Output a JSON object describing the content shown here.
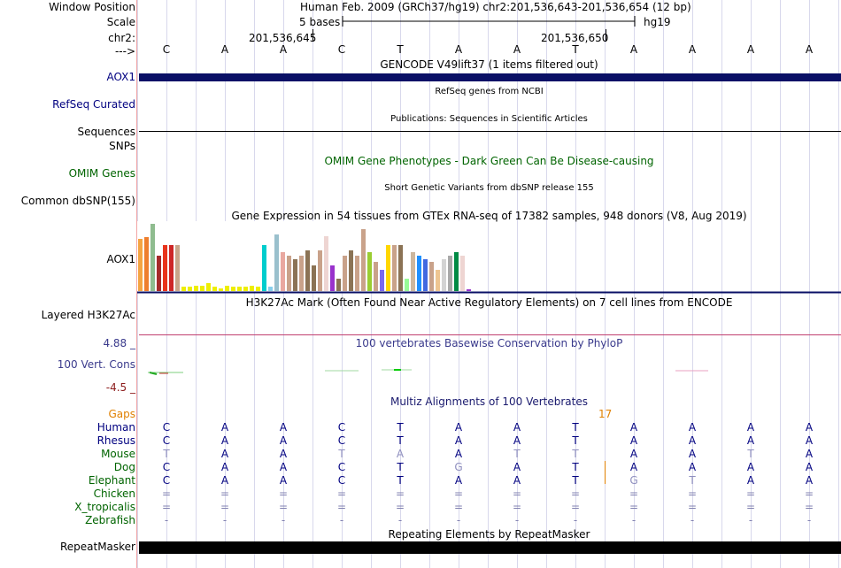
{
  "header": {
    "window_position_label": "Window Position",
    "scale_label": "Scale",
    "chr_label": "chr2:",
    "arrow_label": "--->",
    "assembly_text": "Human Feb. 2009 (GRCh37/hg19)   chr2:201,536,643-201,536,654 (12 bp)",
    "scale_text": "5 bases",
    "db_text": "hg19",
    "coord_left": "201,536,645",
    "coord_right": "201,536,650"
  },
  "sequence": [
    "C",
    "A",
    "A",
    "C",
    "T",
    "A",
    "A",
    "T",
    "A",
    "A",
    "A",
    "A"
  ],
  "tracks": {
    "gencode": {
      "title": "GENCODE V49lift37 (1 items filtered out)",
      "label": "AOX1"
    },
    "refseq": {
      "title": "RefSeq genes from NCBI",
      "label": "RefSeq Curated"
    },
    "publications": {
      "title": "Publications: Sequences in Scientific Articles",
      "label": "Sequences"
    },
    "snps": {
      "label": "SNPs"
    },
    "omim": {
      "title": "OMIM Gene Phenotypes - Dark Green Can Be Disease-causing",
      "label": "OMIM Genes"
    },
    "dbsnp": {
      "title": "Short Genetic Variants from dbSNP release 155",
      "label": "Common dbSNP(155)"
    },
    "gtex": {
      "title": "Gene Expression in 54 tissues from GTEx RNA-seq of 17382 samples, 948 donors (V8, Aug 2019)",
      "label": "AOX1",
      "tissues": [
        {
          "value": 0.77,
          "color": "#f4a442"
        },
        {
          "value": 0.8,
          "color": "#ee7e2e"
        },
        {
          "value": 1.0,
          "color": "#8fbc8f"
        },
        {
          "value": 0.52,
          "color": "#a52a2a"
        },
        {
          "value": 0.69,
          "color": "#e8341c"
        },
        {
          "value": 0.69,
          "color": "#cd2626"
        },
        {
          "value": 0.69,
          "color": "#c8a589"
        },
        {
          "value": 0.06,
          "color": "#eeee00"
        },
        {
          "value": 0.06,
          "color": "#eeee00"
        },
        {
          "value": 0.08,
          "color": "#eeee00"
        },
        {
          "value": 0.08,
          "color": "#eeee00"
        },
        {
          "value": 0.12,
          "color": "#eeee00"
        },
        {
          "value": 0.06,
          "color": "#eeee00"
        },
        {
          "value": 0.04,
          "color": "#eeee00"
        },
        {
          "value": 0.08,
          "color": "#eeee00"
        },
        {
          "value": 0.06,
          "color": "#eeee00"
        },
        {
          "value": 0.06,
          "color": "#eeee00"
        },
        {
          "value": 0.06,
          "color": "#eeee00"
        },
        {
          "value": 0.08,
          "color": "#eeee00"
        },
        {
          "value": 0.06,
          "color": "#eeee00"
        },
        {
          "value": 0.69,
          "color": "#00cdcd"
        },
        {
          "value": 0.06,
          "color": "#87ceeb"
        },
        {
          "value": 0.84,
          "color": "#9ac0cd"
        },
        {
          "value": 0.58,
          "color": "#e9a8a0"
        },
        {
          "value": 0.53,
          "color": "#c9a28a"
        },
        {
          "value": 0.48,
          "color": "#8b7355"
        },
        {
          "value": 0.53,
          "color": "#c9a28a"
        },
        {
          "value": 0.61,
          "color": "#8b7355"
        },
        {
          "value": 0.38,
          "color": "#8b7355"
        },
        {
          "value": 0.61,
          "color": "#c9a28a"
        },
        {
          "value": 0.81,
          "color": "#eed5d2"
        },
        {
          "value": 0.38,
          "color": "#9932cc"
        },
        {
          "value": 0.19,
          "color": "#8b7355"
        },
        {
          "value": 0.53,
          "color": "#c9a28a"
        },
        {
          "value": 0.61,
          "color": "#8b7355"
        },
        {
          "value": 0.53,
          "color": "#c9a28a"
        },
        {
          "value": 0.92,
          "color": "#c9a28a"
        },
        {
          "value": 0.58,
          "color": "#9acd32"
        },
        {
          "value": 0.43,
          "color": "#c9a28a"
        },
        {
          "value": 0.32,
          "color": "#7b68ee"
        },
        {
          "value": 0.69,
          "color": "#ffd700"
        },
        {
          "value": 0.69,
          "color": "#c9a28a"
        },
        {
          "value": 0.69,
          "color": "#8b7355"
        },
        {
          "value": 0.19,
          "color": "#98fb98"
        },
        {
          "value": 0.58,
          "color": "#cdb79e"
        },
        {
          "value": 0.53,
          "color": "#1e90ff"
        },
        {
          "value": 0.48,
          "color": "#4169e1"
        },
        {
          "value": 0.43,
          "color": "#c9a28a"
        },
        {
          "value": 0.32,
          "color": "#eec591"
        },
        {
          "value": 0.48,
          "color": "#d3d3d3"
        },
        {
          "value": 0.53,
          "color": "#a9a9a9"
        },
        {
          "value": 0.58,
          "color": "#008b45"
        },
        {
          "value": 0.53,
          "color": "#eed5d2"
        },
        {
          "value": 0.03,
          "color": "#9932cc"
        }
      ]
    },
    "h3k27ac": {
      "title": "H3K27Ac Mark (Often Found Near Active Regulatory Elements) on 7 cell lines from ENCODE",
      "label": "Layered H3K27Ac"
    },
    "phylop": {
      "title": "100 vertebrates Basewise Conservation by PhyloP",
      "label": "100 Vert. Cons",
      "ymax": "4.88 _",
      "ymin": "-4.5 _"
    },
    "multiz": {
      "title": "Multiz Alignments of 100 Vertebrates",
      "gaps_label": "Gaps",
      "gap_count": "17",
      "species": [
        {
          "name": "Human",
          "color": "#000080",
          "bases": [
            "C",
            "A",
            "A",
            "C",
            "T",
            "A",
            "A",
            "T",
            "A",
            "A",
            "A",
            "A"
          ]
        },
        {
          "name": "Rhesus",
          "color": "#000080",
          "bases": [
            "C",
            "A",
            "A",
            "C",
            "T",
            "A",
            "A",
            "T",
            "A",
            "A",
            "A",
            "A"
          ]
        },
        {
          "name": "Mouse",
          "color": "#006400",
          "bases": [
            "T",
            "A",
            "A",
            "T",
            "A",
            "A",
            "T",
            "T",
            "A",
            "A",
            "T",
            "A"
          ]
        },
        {
          "name": "Dog",
          "color": "#006400",
          "bases": [
            "C",
            "A",
            "A",
            "C",
            "T",
            "G",
            "A",
            "T",
            "A",
            "A",
            "A",
            "A"
          ]
        },
        {
          "name": "Elephant",
          "color": "#006400",
          "bases": [
            "C",
            "A",
            "A",
            "C",
            "T",
            "A",
            "A",
            "T",
            "G",
            "T",
            "A",
            "A"
          ]
        },
        {
          "name": "Chicken",
          "color": "#006400",
          "bases": [
            "=",
            "=",
            "=",
            "=",
            "=",
            "=",
            "=",
            "=",
            "=",
            "=",
            "=",
            "="
          ]
        },
        {
          "name": "X_tropicalis",
          "color": "#006400",
          "bases": [
            "=",
            "=",
            "=",
            "=",
            "=",
            "=",
            "=",
            "=",
            "=",
            "=",
            "=",
            "="
          ]
        },
        {
          "name": "Zebrafish",
          "color": "#006400",
          "bases": [
            "-",
            "-",
            "-",
            "-",
            "-",
            "-",
            "-",
            "-",
            "-",
            "-",
            "-",
            "-"
          ]
        }
      ]
    },
    "repeatmasker": {
      "title": "Repeating Elements by RepeatMasker",
      "label": "RepeatMasker"
    }
  }
}
